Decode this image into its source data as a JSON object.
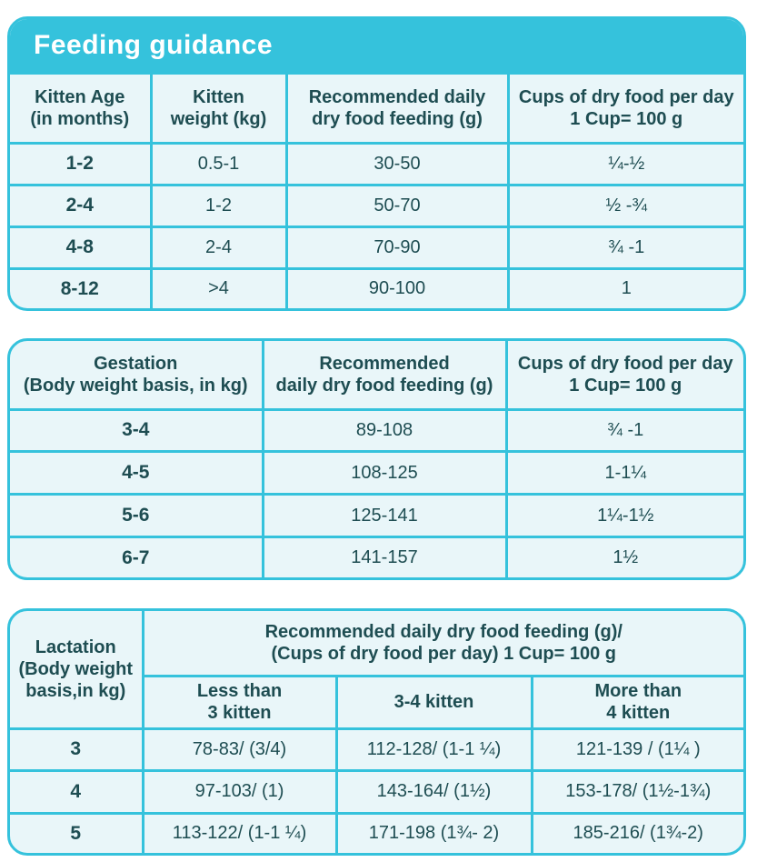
{
  "feeding": {
    "title": "Feeding guidance",
    "headers": [
      [
        "Kitten Age",
        "(in months)"
      ],
      [
        "Kitten",
        "weight (kg)"
      ],
      [
        "Recommended daily",
        "dry food feeding (g)"
      ],
      [
        "Cups of dry food per day",
        "1 Cup= 100 g"
      ]
    ],
    "rows": [
      [
        "1-2",
        "0.5-1",
        "30-50",
        "¼-½"
      ],
      [
        "2-4",
        "1-2",
        "50-70",
        "½ -¾"
      ],
      [
        "4-8",
        "2-4",
        "70-90",
        "¾ -1"
      ],
      [
        "8-12",
        ">4",
        "90-100",
        "1"
      ]
    ]
  },
  "gestation": {
    "headers": [
      [
        "Gestation",
        "(Body weight basis, in kg)"
      ],
      [
        "Recommended",
        "daily dry food feeding (g)"
      ],
      [
        "Cups of dry food per day",
        "1 Cup= 100 g"
      ]
    ],
    "rows": [
      [
        "3-4",
        "89-108",
        "¾ -1"
      ],
      [
        "4-5",
        "108-125",
        "1-1¼"
      ],
      [
        "5-6",
        "125-141",
        "1¼-1½"
      ],
      [
        "6-7",
        "141-157",
        "1½"
      ]
    ]
  },
  "lactation": {
    "corner": [
      "Lactation",
      "(Body weight",
      "basis,in kg)"
    ],
    "group_header": [
      "Recommended daily dry food feeding (g)/",
      "(Cups of dry food per day) 1 Cup= 100 g"
    ],
    "subheaders": [
      [
        "Less than",
        "3 kitten"
      ],
      [
        "3-4 kitten"
      ],
      [
        "More than",
        "4 kitten"
      ]
    ],
    "rows": [
      [
        "3",
        "78-83/ (3/4)",
        "112-128/ (1-1 ¼)",
        "121-139 / (1¼ )"
      ],
      [
        "4",
        "97-103/ (1)",
        "143-164/ (1½)",
        "153-178/ (1½-1¾)"
      ],
      [
        "5",
        "113-122/ (1-1 ¼)",
        "171-198 (1¾- 2)",
        "185-216/ (1¾-2)"
      ]
    ]
  },
  "colors": {
    "accent": "#35c2dc",
    "panel_bg": "#e9f6f9",
    "text": "#1e4d52"
  }
}
